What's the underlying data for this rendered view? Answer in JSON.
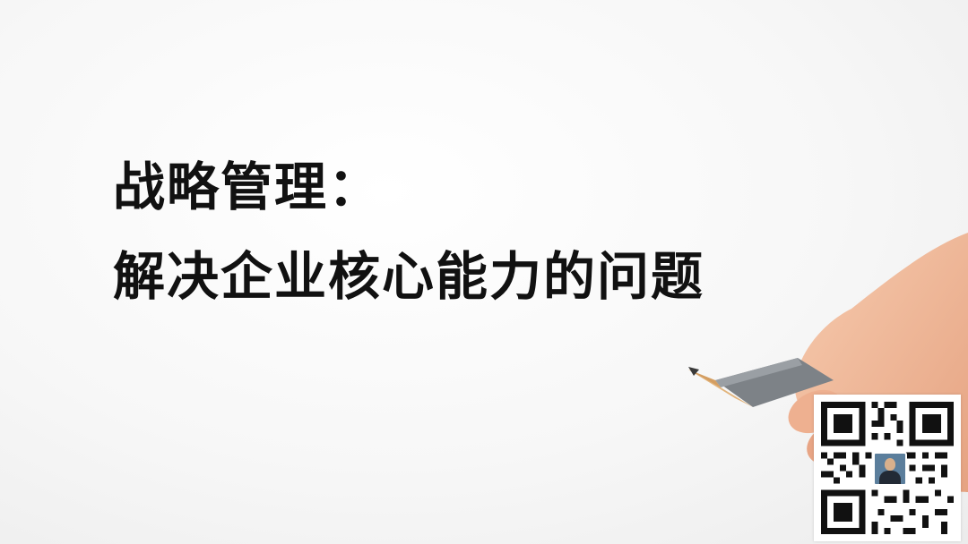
{
  "headline": {
    "line1": "战略管理：",
    "line2": "解决企业核心能力的问题"
  },
  "qr_code": {
    "icon": "qr-code-icon",
    "avatar_icon": "profile-avatar-icon"
  },
  "colors": {
    "text": "#111111",
    "background": "#f5f5f5",
    "pencil_body": "#7d8287",
    "pencil_wood": "#e2b47c",
    "skin": "#f0b99a"
  }
}
